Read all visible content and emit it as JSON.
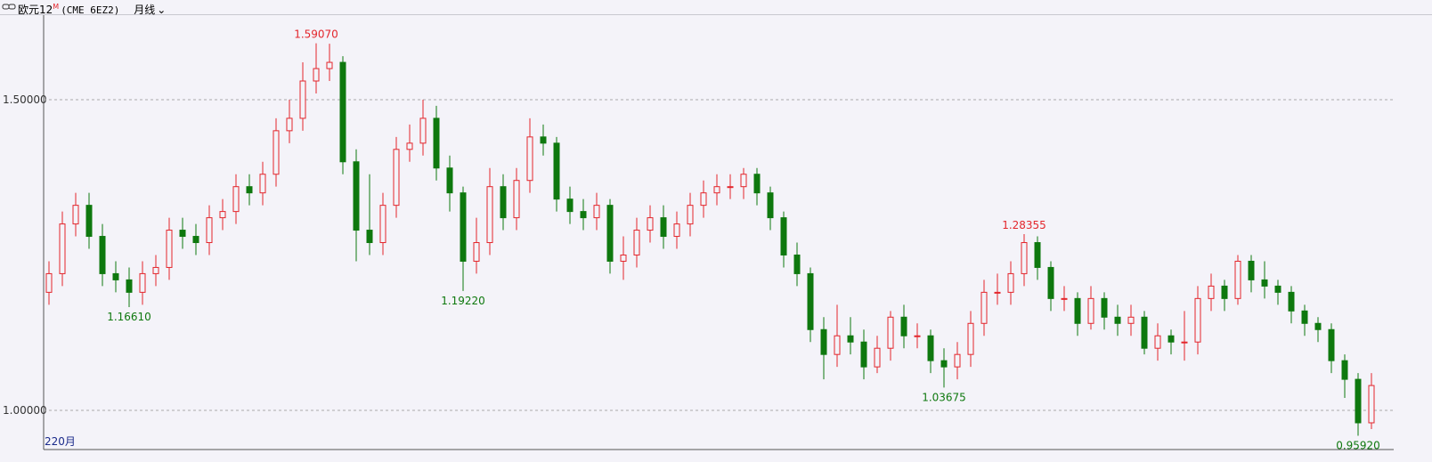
{
  "header": {
    "name": "欧元12",
    "superscript": "M",
    "code": "(CME 6EZ2)",
    "period": "月线"
  },
  "chart_data": {
    "type": "candlestick",
    "x_label": "220月",
    "ylim": [
      0.937,
      1.636
    ],
    "yticks": [
      {
        "value": 1.5,
        "label": "1.50000"
      },
      {
        "value": 1,
        "label": "1.00000"
      }
    ],
    "grid": true,
    "up_color": "#e3262c",
    "down_color": "#0e780e",
    "candles": [
      [
        1.19,
        1.24,
        1.17,
        1.22
      ],
      [
        1.22,
        1.32,
        1.2,
        1.3
      ],
      [
        1.3,
        1.35,
        1.28,
        1.33
      ],
      [
        1.33,
        1.35,
        1.26,
        1.28
      ],
      [
        1.28,
        1.3,
        1.2,
        1.22
      ],
      [
        1.22,
        1.24,
        1.19,
        1.21
      ],
      [
        1.21,
        1.23,
        1.1661,
        1.19
      ],
      [
        1.19,
        1.24,
        1.17,
        1.22
      ],
      [
        1.22,
        1.25,
        1.2,
        1.23
      ],
      [
        1.23,
        1.31,
        1.21,
        1.29
      ],
      [
        1.29,
        1.31,
        1.26,
        1.28
      ],
      [
        1.28,
        1.3,
        1.25,
        1.27
      ],
      [
        1.27,
        1.33,
        1.25,
        1.31
      ],
      [
        1.31,
        1.34,
        1.29,
        1.32
      ],
      [
        1.32,
        1.38,
        1.3,
        1.36
      ],
      [
        1.36,
        1.38,
        1.33,
        1.35
      ],
      [
        1.35,
        1.4,
        1.33,
        1.38
      ],
      [
        1.38,
        1.47,
        1.36,
        1.45
      ],
      [
        1.45,
        1.5,
        1.43,
        1.47
      ],
      [
        1.47,
        1.56,
        1.45,
        1.53
      ],
      [
        1.53,
        1.5907,
        1.51,
        1.55
      ],
      [
        1.55,
        1.59,
        1.53,
        1.56
      ],
      [
        1.56,
        1.57,
        1.38,
        1.4
      ],
      [
        1.4,
        1.42,
        1.24,
        1.29
      ],
      [
        1.29,
        1.38,
        1.25,
        1.27
      ],
      [
        1.27,
        1.35,
        1.25,
        1.33
      ],
      [
        1.33,
        1.44,
        1.31,
        1.42
      ],
      [
        1.42,
        1.46,
        1.4,
        1.43
      ],
      [
        1.43,
        1.5,
        1.41,
        1.47
      ],
      [
        1.47,
        1.49,
        1.37,
        1.39
      ],
      [
        1.39,
        1.41,
        1.32,
        1.35
      ],
      [
        1.35,
        1.36,
        1.1922,
        1.24
      ],
      [
        1.24,
        1.31,
        1.22,
        1.27
      ],
      [
        1.27,
        1.39,
        1.25,
        1.36
      ],
      [
        1.36,
        1.38,
        1.29,
        1.31
      ],
      [
        1.31,
        1.39,
        1.29,
        1.37
      ],
      [
        1.37,
        1.47,
        1.35,
        1.44
      ],
      [
        1.44,
        1.46,
        1.41,
        1.43
      ],
      [
        1.43,
        1.44,
        1.32,
        1.34
      ],
      [
        1.34,
        1.36,
        1.3,
        1.32
      ],
      [
        1.32,
        1.34,
        1.29,
        1.31
      ],
      [
        1.31,
        1.35,
        1.29,
        1.33
      ],
      [
        1.33,
        1.34,
        1.22,
        1.24
      ],
      [
        1.24,
        1.28,
        1.21,
        1.25
      ],
      [
        1.25,
        1.31,
        1.23,
        1.29
      ],
      [
        1.29,
        1.33,
        1.27,
        1.31
      ],
      [
        1.31,
        1.33,
        1.26,
        1.28
      ],
      [
        1.28,
        1.32,
        1.26,
        1.3
      ],
      [
        1.3,
        1.35,
        1.28,
        1.33
      ],
      [
        1.33,
        1.37,
        1.31,
        1.35
      ],
      [
        1.35,
        1.38,
        1.33,
        1.36
      ],
      [
        1.36,
        1.38,
        1.34,
        1.36
      ],
      [
        1.36,
        1.39,
        1.34,
        1.38
      ],
      [
        1.38,
        1.39,
        1.33,
        1.35
      ],
      [
        1.35,
        1.36,
        1.29,
        1.31
      ],
      [
        1.31,
        1.32,
        1.23,
        1.25
      ],
      [
        1.25,
        1.27,
        1.2,
        1.22
      ],
      [
        1.22,
        1.23,
        1.11,
        1.13
      ],
      [
        1.13,
        1.15,
        1.05,
        1.09
      ],
      [
        1.09,
        1.17,
        1.07,
        1.12
      ],
      [
        1.12,
        1.15,
        1.09,
        1.11
      ],
      [
        1.11,
        1.13,
        1.05,
        1.07
      ],
      [
        1.07,
        1.12,
        1.06,
        1.1
      ],
      [
        1.1,
        1.16,
        1.08,
        1.15
      ],
      [
        1.15,
        1.17,
        1.1,
        1.12
      ],
      [
        1.12,
        1.14,
        1.1,
        1.12
      ],
      [
        1.12,
        1.13,
        1.06,
        1.08
      ],
      [
        1.08,
        1.1,
        1.03675,
        1.07
      ],
      [
        1.07,
        1.11,
        1.05,
        1.09
      ],
      [
        1.09,
        1.16,
        1.07,
        1.14
      ],
      [
        1.14,
        1.21,
        1.12,
        1.19
      ],
      [
        1.19,
        1.22,
        1.17,
        1.19
      ],
      [
        1.19,
        1.24,
        1.17,
        1.22
      ],
      [
        1.22,
        1.28355,
        1.2,
        1.27
      ],
      [
        1.27,
        1.28,
        1.21,
        1.23
      ],
      [
        1.23,
        1.24,
        1.16,
        1.18
      ],
      [
        1.18,
        1.2,
        1.16,
        1.18
      ],
      [
        1.18,
        1.19,
        1.12,
        1.14
      ],
      [
        1.14,
        1.2,
        1.13,
        1.18
      ],
      [
        1.18,
        1.19,
        1.13,
        1.15
      ],
      [
        1.15,
        1.17,
        1.12,
        1.14
      ],
      [
        1.14,
        1.17,
        1.12,
        1.15
      ],
      [
        1.15,
        1.16,
        1.09,
        1.1
      ],
      [
        1.1,
        1.14,
        1.08,
        1.12
      ],
      [
        1.12,
        1.13,
        1.09,
        1.11
      ],
      [
        1.11,
        1.16,
        1.08,
        1.11
      ],
      [
        1.11,
        1.2,
        1.09,
        1.18
      ],
      [
        1.18,
        1.22,
        1.16,
        1.2
      ],
      [
        1.2,
        1.21,
        1.16,
        1.18
      ],
      [
        1.18,
        1.25,
        1.17,
        1.24
      ],
      [
        1.24,
        1.25,
        1.19,
        1.21
      ],
      [
        1.21,
        1.24,
        1.18,
        1.2
      ],
      [
        1.2,
        1.21,
        1.17,
        1.19
      ],
      [
        1.19,
        1.2,
        1.14,
        1.16
      ],
      [
        1.16,
        1.17,
        1.12,
        1.14
      ],
      [
        1.14,
        1.15,
        1.11,
        1.13
      ],
      [
        1.13,
        1.14,
        1.06,
        1.08
      ],
      [
        1.08,
        1.09,
        1.02,
        1.05
      ],
      [
        1.05,
        1.06,
        0.9592,
        0.98
      ],
      [
        0.98,
        1.06,
        0.97,
        1.04
      ]
    ],
    "annotations": [
      {
        "value": 1.5907,
        "label": "1.59070"
      },
      {
        "value": 1.1661,
        "label": "1.16610"
      },
      {
        "value": 1.1922,
        "label": "1.19220"
      },
      {
        "value": 1.28355,
        "label": "1.28355"
      },
      {
        "value": 1.03675,
        "label": "1.03675"
      },
      {
        "value": 0.9592,
        "label": "0.95920"
      }
    ]
  }
}
